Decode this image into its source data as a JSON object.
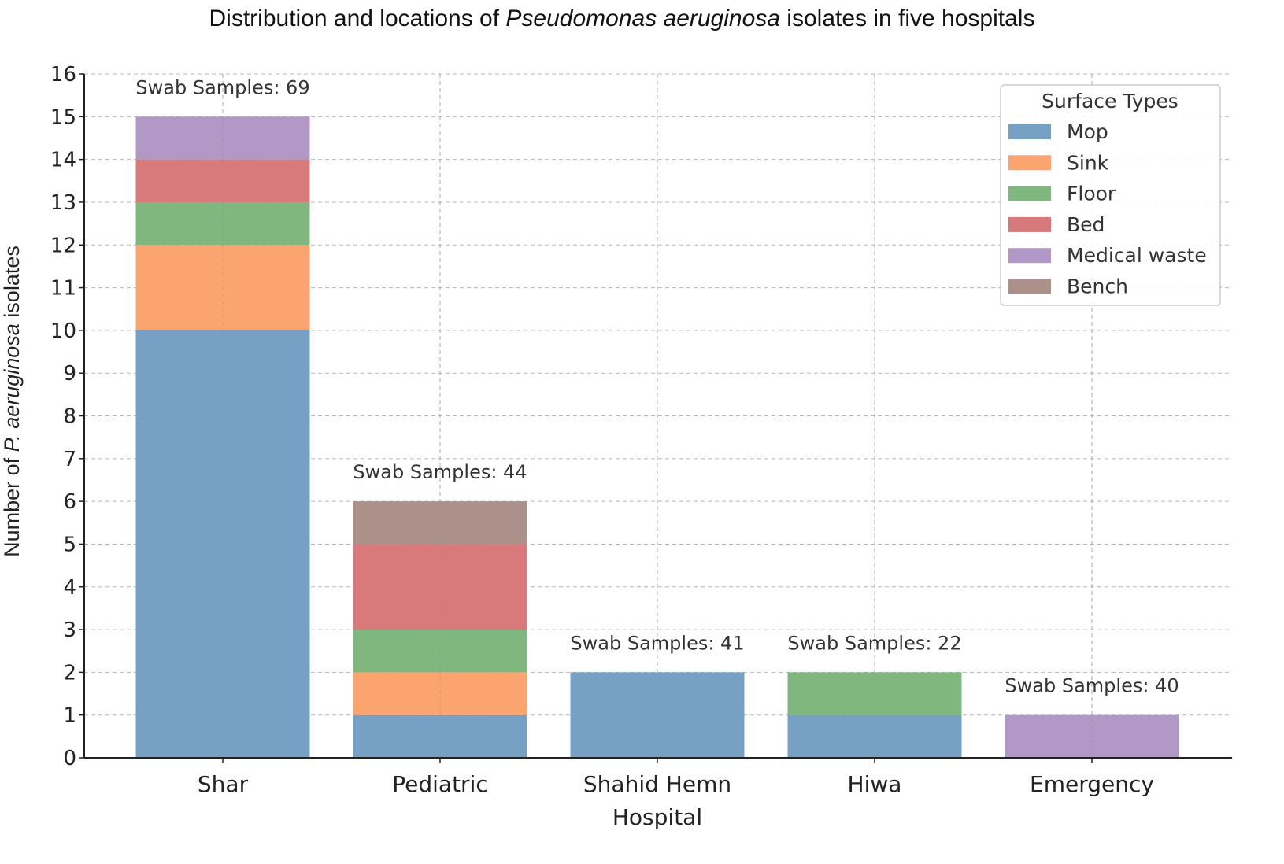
{
  "chart_data": {
    "type": "bar",
    "stacked": true,
    "title": "Distribution and locations of Pseudomonas aeruginosa isolates in five hospitals",
    "title_parts": [
      "Distribution and locations of ",
      "Pseudomonas aeruginosa",
      " isolates in five hospitals"
    ],
    "xlabel": "Hospital",
    "ylabel_parts": [
      "Number of ",
      "P. aeruginosa",
      " isolates"
    ],
    "ylim": [
      0,
      16
    ],
    "yticks": [
      0,
      1,
      2,
      3,
      4,
      5,
      6,
      7,
      8,
      9,
      10,
      11,
      12,
      13,
      14,
      15,
      16
    ],
    "grid": true,
    "legend_position": "upper right",
    "legend_title": "Surface Types",
    "categories": [
      "Shar",
      "Pediatric",
      "Shahid Hemn",
      "Hiwa",
      "Emergency"
    ],
    "series": [
      {
        "name": "Mop",
        "color": "#77a1c4",
        "values": [
          10,
          1,
          2,
          1,
          0
        ]
      },
      {
        "name": "Sink",
        "color": "#fca46f",
        "values": [
          2,
          1,
          0,
          0,
          0
        ]
      },
      {
        "name": "Floor",
        "color": "#80b77f",
        "values": [
          1,
          1,
          0,
          1,
          0
        ]
      },
      {
        "name": "Bed",
        "color": "#d87a7b",
        "values": [
          1,
          2,
          0,
          0,
          0
        ]
      },
      {
        "name": "Medical waste",
        "color": "#b198c6",
        "values": [
          1,
          0,
          0,
          0,
          1
        ]
      },
      {
        "name": "Bench",
        "color": "#ab9189",
        "values": [
          0,
          1,
          0,
          0,
          0
        ]
      }
    ],
    "annotations": [
      {
        "category": "Shar",
        "text": "Swab Samples: 69"
      },
      {
        "category": "Pediatric",
        "text": "Swab Samples: 44"
      },
      {
        "category": "Shahid Hemn",
        "text": "Swab Samples: 41"
      },
      {
        "category": "Hiwa",
        "text": "Swab Samples: 22"
      },
      {
        "category": "Emergency",
        "text": "Swab Samples: 40"
      }
    ],
    "totals": [
      15,
      6,
      2,
      2,
      1
    ]
  }
}
